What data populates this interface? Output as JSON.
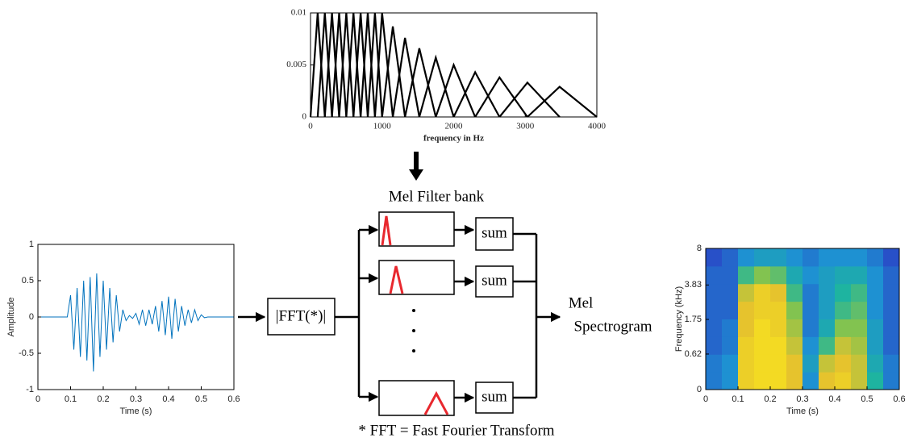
{
  "chart_data": [
    {
      "type": "filterbank",
      "xlabel": "frequency in Hz",
      "color": "#000000",
      "x": [
        100,
        200,
        300,
        400,
        500,
        600,
        700,
        800,
        900,
        1000,
        1150,
        1320,
        1520,
        1750,
        2000,
        2300,
        2640,
        3030,
        3480
      ],
      "values": [
        0.01,
        0.01,
        0.01,
        0.01,
        0.01,
        0.01,
        0.01,
        0.01,
        0.01,
        0.01,
        0.0087,
        0.0076,
        0.0066,
        0.0057,
        0.005,
        0.0043,
        0.0038,
        0.0033,
        0.0029
      ],
      "xlim": [
        0,
        4000
      ],
      "xticks": [
        0,
        1000,
        2000,
        3000,
        4000
      ],
      "ylim": [
        0,
        0.01
      ],
      "yticks": [
        0,
        0.005,
        0.01
      ]
    },
    {
      "type": "line",
      "xlabel": "Time (s)",
      "ylabel": "Amplitude",
      "color": "#0072bd",
      "x": [
        0,
        0.01,
        0.02,
        0.03,
        0.04,
        0.05,
        0.06,
        0.07,
        0.08,
        0.09,
        0.1,
        0.11,
        0.12,
        0.13,
        0.14,
        0.15,
        0.16,
        0.17,
        0.18,
        0.19,
        0.2,
        0.21,
        0.22,
        0.23,
        0.24,
        0.25,
        0.26,
        0.27,
        0.28,
        0.29,
        0.3,
        0.31,
        0.32,
        0.33,
        0.34,
        0.35,
        0.36,
        0.37,
        0.38,
        0.39,
        0.4,
        0.41,
        0.42,
        0.43,
        0.44,
        0.45,
        0.46,
        0.47,
        0.48,
        0.49,
        0.5,
        0.51,
        0.52,
        0.53,
        0.54,
        0.55,
        0.56,
        0.57,
        0.58,
        0.59,
        0.6
      ],
      "values": [
        0,
        0,
        0,
        0,
        0,
        0,
        0,
        0,
        0,
        0,
        0.3,
        -0.45,
        0.4,
        -0.55,
        0.5,
        -0.6,
        0.55,
        -0.75,
        0.6,
        -0.55,
        0.5,
        -0.45,
        0.4,
        -0.35,
        0.3,
        -0.2,
        0.1,
        -0.05,
        0.02,
        -0.02,
        0.05,
        -0.1,
        0.1,
        -0.12,
        0.1,
        -0.1,
        0.15,
        -0.2,
        0.22,
        -0.25,
        0.28,
        -0.3,
        0.25,
        -0.2,
        0.15,
        -0.12,
        0.1,
        -0.08,
        0.1,
        -0.05,
        0.03,
        -0.01,
        0,
        0,
        0,
        0,
        0,
        0,
        0,
        0,
        0
      ],
      "xlim": [
        0,
        0.6
      ],
      "xticks": [
        0,
        0.1,
        0.2,
        0.3,
        0.4,
        0.5,
        0.6
      ],
      "ylim": [
        -1,
        1
      ],
      "yticks": [
        -1,
        -0.5,
        0,
        0.5,
        1
      ]
    },
    {
      "type": "heatmap",
      "xlabel": "Time (s)",
      "ylabel": "Frequency (kHz)",
      "yscale": "mel",
      "xlim": [
        0,
        0.6
      ],
      "xticks": [
        0,
        0.1,
        0.2,
        0.3,
        0.4,
        0.5,
        0.6
      ],
      "ylim": [
        0,
        8
      ],
      "yticks": [
        0,
        0.62,
        1.75,
        3.83,
        8
      ],
      "z": [
        [
          0.35,
          0.4,
          0.9,
          0.95,
          0.95,
          0.85,
          0.4,
          0.85,
          0.9,
          0.8,
          0.55,
          0.35
        ],
        [
          0.35,
          0.4,
          0.9,
          0.95,
          0.95,
          0.85,
          0.45,
          0.8,
          0.85,
          0.8,
          0.5,
          0.35
        ],
        [
          0.3,
          0.35,
          0.9,
          0.95,
          0.95,
          0.8,
          0.4,
          0.6,
          0.8,
          0.75,
          0.45,
          0.3
        ],
        [
          0.3,
          0.35,
          0.85,
          0.95,
          0.9,
          0.75,
          0.35,
          0.5,
          0.7,
          0.7,
          0.45,
          0.3
        ],
        [
          0.3,
          0.3,
          0.85,
          0.9,
          0.9,
          0.7,
          0.35,
          0.45,
          0.6,
          0.65,
          0.4,
          0.3
        ],
        [
          0.3,
          0.3,
          0.8,
          0.9,
          0.85,
          0.6,
          0.35,
          0.45,
          0.55,
          0.6,
          0.4,
          0.3
        ],
        [
          0.3,
          0.3,
          0.6,
          0.7,
          0.65,
          0.5,
          0.4,
          0.45,
          0.5,
          0.5,
          0.4,
          0.3
        ],
        [
          0.25,
          0.3,
          0.4,
          0.45,
          0.45,
          0.4,
          0.35,
          0.4,
          0.4,
          0.4,
          0.35,
          0.25
        ]
      ]
    }
  ],
  "diagram": {
    "filter_bank_label": "Mel Filter bank",
    "fft_block": "|FFT(*)|",
    "sum_blocks": [
      "sum",
      "sum",
      "sum"
    ],
    "output_label": [
      "Mel",
      "Spectrogram"
    ],
    "footnote": "* FFT = Fast Fourier Transform"
  }
}
